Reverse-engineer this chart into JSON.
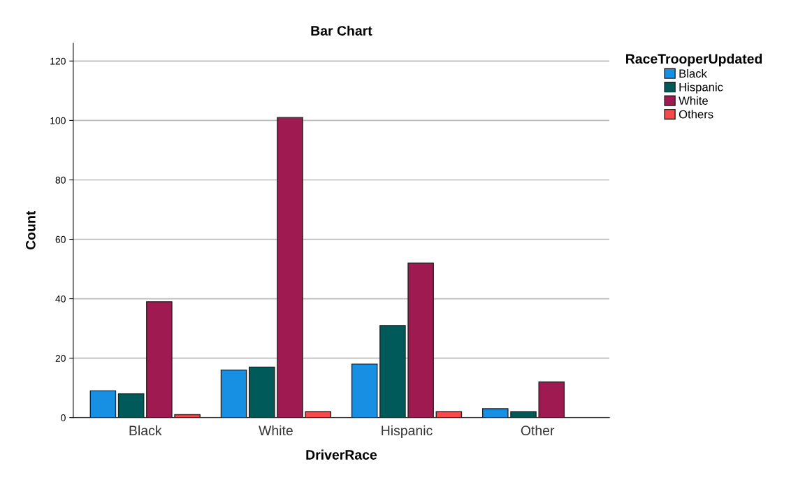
{
  "chart_data": {
    "type": "bar",
    "title": "Bar Chart",
    "xlabel": "DriverRace",
    "ylabel": "Count",
    "legend_title": "RaceTrooperUpdated",
    "categories": [
      "Black",
      "White",
      "Hispanic",
      "Other"
    ],
    "series": [
      {
        "name": "Black",
        "color": "#1790e4",
        "values": [
          9,
          16,
          18,
          3
        ]
      },
      {
        "name": "Hispanic",
        "color": "#005a5a",
        "values": [
          8,
          17,
          31,
          2
        ]
      },
      {
        "name": "White",
        "color": "#9e1a50",
        "values": [
          39,
          101,
          52,
          12
        ]
      },
      {
        "name": "Others",
        "color": "#f84a4a",
        "values": [
          1,
          2,
          2,
          null
        ]
      }
    ],
    "ylim": [
      0,
      126
    ],
    "yticks": [
      0,
      20,
      40,
      60,
      80,
      100,
      120
    ],
    "grid": "y",
    "legend": "top right"
  }
}
